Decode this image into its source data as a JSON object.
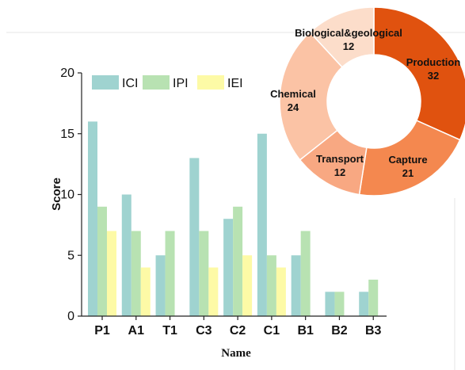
{
  "chart_data": [
    {
      "type": "bar",
      "categories": [
        "P1",
        "A1",
        "T1",
        "C3",
        "C2",
        "C1",
        "B1",
        "B2",
        "B3"
      ],
      "series": [
        {
          "name": "ICI",
          "color": "#9fd3d0",
          "values": [
            16,
            10,
            5,
            13,
            8,
            15,
            5,
            2,
            2
          ]
        },
        {
          "name": "IPI",
          "color": "#b8e2b2",
          "values": [
            9,
            7,
            7,
            7,
            9,
            5,
            7,
            2,
            3
          ]
        },
        {
          "name": "IEI",
          "color": "#fdfaa6",
          "values": [
            7,
            4,
            0,
            4,
            5,
            4,
            0,
            0,
            0
          ]
        }
      ],
      "title": "",
      "xlabel": "Name",
      "ylabel": "Score",
      "ylim": [
        0,
        20
      ],
      "yticks": [
        0,
        5,
        10,
        15,
        20
      ],
      "grid": false,
      "legend_position": "top-left"
    },
    {
      "type": "pie",
      "variant": "donut",
      "slices": [
        {
          "label": "Production",
          "value": 32,
          "color": "#e0520f"
        },
        {
          "label": "Capture",
          "value": 21,
          "color": "#f4884f"
        },
        {
          "label": "Transport",
          "value": 12,
          "color": "#f8a882"
        },
        {
          "label": "Chemical",
          "value": 24,
          "color": "#fbc3a5"
        },
        {
          "label": "Biological&geological",
          "value": 12,
          "color": "#fcddca"
        }
      ]
    }
  ]
}
